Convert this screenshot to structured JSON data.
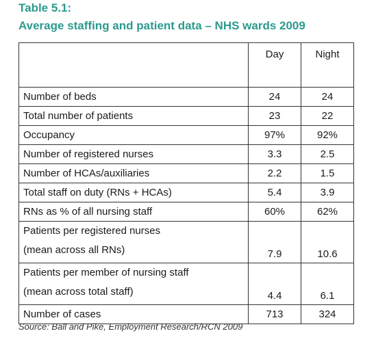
{
  "title": "Table 5.1:",
  "subtitle": "Average staffing and patient data – NHS wards 2009",
  "table": {
    "columns": [
      "Day",
      "Night"
    ],
    "rows": [
      {
        "label": [
          "Number of beds"
        ],
        "cells": [
          "24",
          "24"
        ]
      },
      {
        "label": [
          "Total number of patients"
        ],
        "cells": [
          "23",
          "22"
        ]
      },
      {
        "label": [
          "Occupancy"
        ],
        "cells": [
          "97%",
          "92%"
        ]
      },
      {
        "label": [
          "Number of registered nurses"
        ],
        "cells": [
          "3.3",
          "2.5"
        ]
      },
      {
        "label": [
          "Number of HCAs/auxiliaries"
        ],
        "cells": [
          "2.2",
          "1.5"
        ]
      },
      {
        "label": [
          "Total staff on duty (RNs + HCAs)"
        ],
        "cells": [
          "5.4",
          "3.9"
        ]
      },
      {
        "label": [
          "RNs as % of all nursing staff"
        ],
        "cells": [
          "60%",
          "62%"
        ]
      },
      {
        "label": [
          "Patients per registered nurses",
          "(mean across all RNs)"
        ],
        "cells": [
          "7.9",
          "10.6"
        ]
      },
      {
        "label": [
          "Patients per member of nursing staff",
          "(mean across total staff)"
        ],
        "cells": [
          "4.4",
          "6.1"
        ]
      },
      {
        "label": [
          "Number of cases"
        ],
        "cells": [
          "713",
          "324"
        ]
      }
    ]
  },
  "source": "Source: Ball and Pike, Employment Research/RCN 2009"
}
